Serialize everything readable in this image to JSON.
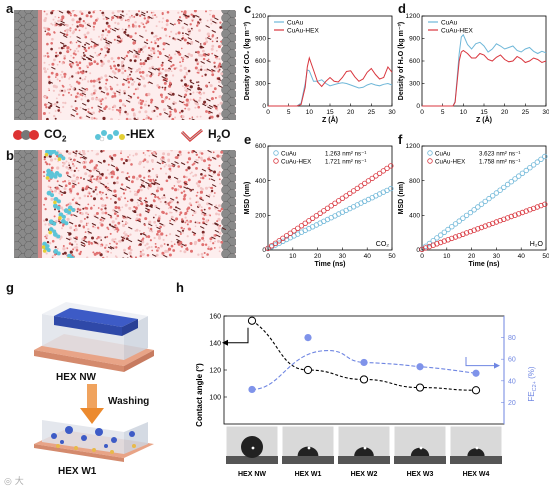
{
  "panel_labels": {
    "a": "a",
    "b": "b",
    "c": "c",
    "d": "d",
    "e": "e",
    "f": "f",
    "g": "g",
    "h": "h"
  },
  "legend_ab": {
    "co2": "CO",
    "co2_sub": "2",
    "hex": "-HEX",
    "h2o": "H",
    "h2o_sub": "2",
    "h2o_end": "O"
  },
  "panel_g": {
    "top_caption": "HEX NW",
    "arrow_label": "Washing",
    "bottom_caption": "HEX W1"
  },
  "colors": {
    "blue": "#3a78c0",
    "red": "#d9363e",
    "cu_blue": "#6fb7d8",
    "periwinkle": "#7f93ea",
    "dashed_blue": "#6f86e2"
  },
  "chart_data": [
    {
      "id": "c",
      "type": "line",
      "ylabel": "Density of CO₂ (kg m⁻³)",
      "xlabel": "Z (Å)",
      "xlim": [
        0,
        30
      ],
      "ylim": [
        0,
        1200
      ],
      "xticks": [
        0,
        5,
        10,
        15,
        20,
        25,
        30
      ],
      "yticks": [
        0,
        300,
        600,
        900,
        1200
      ],
      "legend": "top-left",
      "series": [
        {
          "name": "CuAu",
          "color": "#6fb7d8",
          "x": [
            0,
            7,
            8,
            9,
            9.5,
            10,
            11,
            12,
            13,
            14,
            15,
            16,
            17,
            18,
            19,
            20,
            21,
            22,
            23,
            24,
            25,
            26,
            27,
            28,
            29,
            30
          ],
          "y": [
            0,
            0,
            40,
            300,
            480,
            470,
            330,
            330,
            350,
            300,
            270,
            285,
            300,
            310,
            300,
            280,
            260,
            240,
            250,
            280,
            300,
            280,
            270,
            290,
            300,
            280
          ]
        },
        {
          "name": "CuAu-HEX",
          "color": "#d9363e",
          "x": [
            0,
            7,
            8,
            9,
            9.5,
            10,
            11,
            12,
            13,
            14,
            15,
            16,
            17,
            18,
            19,
            20,
            21,
            22,
            23,
            24,
            25,
            26,
            27,
            28,
            29,
            30
          ],
          "y": [
            0,
            0,
            20,
            250,
            520,
            640,
            480,
            320,
            260,
            330,
            380,
            330,
            320,
            380,
            460,
            470,
            390,
            330,
            360,
            450,
            500,
            420,
            360,
            380,
            520,
            450
          ]
        }
      ]
    },
    {
      "id": "d",
      "type": "line",
      "ylabel": "Density of H₂O (kg m⁻³)",
      "xlabel": "Z (Å)",
      "xlim": [
        0,
        30
      ],
      "ylim": [
        0,
        1200
      ],
      "xticks": [
        0,
        5,
        10,
        15,
        20,
        25,
        30
      ],
      "yticks": [
        0,
        300,
        600,
        900,
        1200
      ],
      "legend": "top-left",
      "series": [
        {
          "name": "CuAu",
          "color": "#6fb7d8",
          "x": [
            0,
            7.5,
            8,
            9,
            9.5,
            10,
            11,
            12,
            13,
            14,
            15,
            16,
            17,
            18,
            19,
            20,
            21,
            22,
            23,
            24,
            25,
            26,
            27,
            28,
            29,
            30
          ],
          "y": [
            0,
            0,
            60,
            700,
            920,
            950,
            820,
            760,
            830,
            850,
            800,
            720,
            760,
            830,
            800,
            760,
            780,
            800,
            740,
            720,
            760,
            780,
            730,
            700,
            730,
            710
          ]
        },
        {
          "name": "CuAu-HEX",
          "color": "#d9363e",
          "x": [
            0,
            7.5,
            8,
            9,
            9.5,
            10,
            11,
            12,
            13,
            14,
            15,
            16,
            17,
            18,
            19,
            20,
            21,
            22,
            23,
            24,
            25,
            26,
            27,
            28,
            29,
            30
          ],
          "y": [
            0,
            0,
            50,
            600,
            720,
            740,
            700,
            640,
            640,
            700,
            680,
            620,
            600,
            650,
            680,
            620,
            590,
            600,
            660,
            630,
            580,
            600,
            640,
            620,
            580,
            600
          ]
        }
      ]
    },
    {
      "id": "e",
      "type": "scatter",
      "ylabel": "MSD (nm)",
      "xlabel": "Time (ns)",
      "xlim": [
        0,
        50
      ],
      "ylim": [
        0,
        600
      ],
      "xticks": [
        0,
        10,
        20,
        30,
        40,
        50
      ],
      "yticks": [
        0,
        200,
        400,
        600
      ],
      "corner_label": "CO₂",
      "legend": "top-left",
      "series": [
        {
          "name": "CuAu",
          "value_text": "1.263 nm² ns⁻¹",
          "color": "#6fb7d8",
          "slope": 7.0,
          "intercept": 8
        },
        {
          "name": "CuAu-HEX",
          "value_text": "1.721 nm² ns⁻¹",
          "color": "#d9363e",
          "slope": 9.6,
          "intercept": 10
        }
      ]
    },
    {
      "id": "f",
      "type": "scatter",
      "ylabel": "MSD (nm)",
      "xlabel": "Time (ns)",
      "xlim": [
        0,
        50
      ],
      "ylim": [
        0,
        1200
      ],
      "xticks": [
        0,
        10,
        20,
        30,
        40,
        50
      ],
      "yticks": [
        0,
        400,
        800,
        1200
      ],
      "corner_label": "H₂O",
      "legend": "top-left",
      "series": [
        {
          "name": "CuAu",
          "value_text": "3.623 nm² ns⁻¹",
          "color": "#6fb7d8",
          "slope": 21.6,
          "intercept": 10
        },
        {
          "name": "CuAu-HEX",
          "value_text": "1.758 nm² ns⁻¹",
          "color": "#d9363e",
          "slope": 10.5,
          "intercept": 8
        }
      ]
    },
    {
      "id": "h",
      "type": "scatter",
      "categories": [
        "HEX NW",
        "HEX W1",
        "HEX W2",
        "HEX W3",
        "HEX W4"
      ],
      "ylabel": "Contact angle (°)",
      "y2label": "FE",
      "y2label_sub": "C2+",
      "y2label_unit": " (%)",
      "ylim": [
        80,
        160
      ],
      "yticks": [
        100,
        120,
        140,
        160
      ],
      "y2lim": [
        0,
        100
      ],
      "y2ticks": [
        20,
        40,
        60,
        80
      ],
      "series": [
        {
          "name": "Contact angle",
          "axis": "left",
          "values": [
            156.5,
            120,
            113,
            107,
            105
          ],
          "color": "#000000"
        },
        {
          "name": "FE C2+",
          "axis": "right",
          "values": [
            32,
            80,
            57,
            53,
            47
          ],
          "color": "#7f93ea"
        }
      ]
    }
  ]
}
